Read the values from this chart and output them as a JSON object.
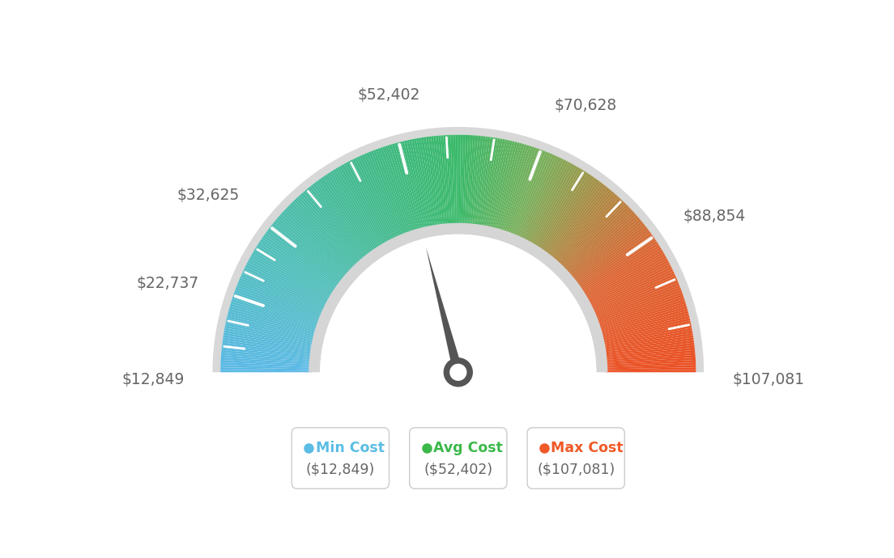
{
  "min_val": 12849,
  "max_val": 107081,
  "avg_val": 52402,
  "label_values": [
    12849,
    22737,
    32625,
    52402,
    70628,
    88854,
    107081
  ],
  "label_texts": [
    "$12,849",
    "$22,737",
    "$32,625",
    "$52,402",
    "$70,628",
    "$88,854",
    "$107,081"
  ],
  "legend": [
    {
      "label": "Min Cost",
      "value": "($12,849)",
      "dot_color": "#5bbde4"
    },
    {
      "label": "Avg Cost",
      "value": "($52,402)",
      "dot_color": "#3cb84a"
    },
    {
      "label": "Max Cost",
      "value": "($107,081)",
      "dot_color": "#f05a28"
    }
  ],
  "background_color": "#ffffff",
  "color_stops": [
    [
      0.0,
      [
        91,
        185,
        230
      ]
    ],
    [
      0.18,
      [
        80,
        190,
        185
      ]
    ],
    [
      0.35,
      [
        65,
        185,
        140
      ]
    ],
    [
      0.5,
      [
        58,
        185,
        105
      ]
    ],
    [
      0.62,
      [
        120,
        175,
        90
      ]
    ],
    [
      0.72,
      [
        175,
        135,
        65
      ]
    ],
    [
      0.82,
      [
        220,
        100,
        50
      ]
    ],
    [
      1.0,
      [
        235,
        80,
        35
      ]
    ]
  ]
}
